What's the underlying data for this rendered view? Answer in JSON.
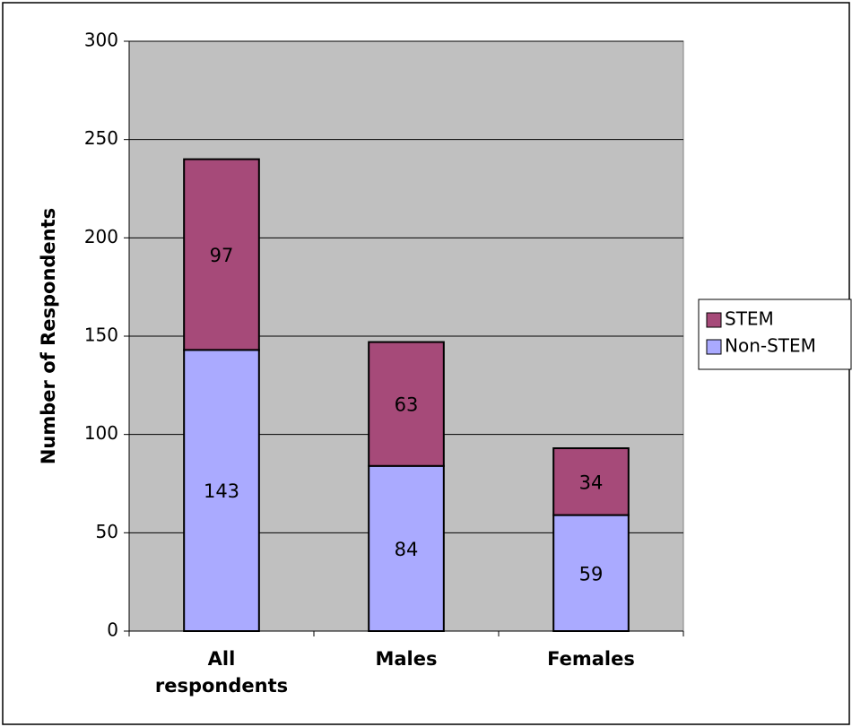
{
  "chart_data": {
    "type": "bar",
    "stacked": true,
    "categories": [
      [
        "All",
        "respondents"
      ],
      [
        "Males"
      ],
      [
        "Females"
      ]
    ],
    "series": [
      {
        "name": "Non-STEM",
        "values": [
          143,
          84,
          59
        ],
        "color": "#aaaaff"
      },
      {
        "name": "STEM",
        "values": [
          97,
          63,
          34
        ],
        "color": "#a64a79"
      }
    ],
    "ylabel": "Number of Respondents",
    "ylim": [
      0,
      300
    ],
    "yticks": [
      "0",
      "50",
      "100",
      "150",
      "200",
      "250",
      "300"
    ],
    "grid": true,
    "plot_background": "#c0c0c0",
    "legend": {
      "position": "right",
      "order": [
        "STEM",
        "Non-STEM"
      ]
    }
  }
}
